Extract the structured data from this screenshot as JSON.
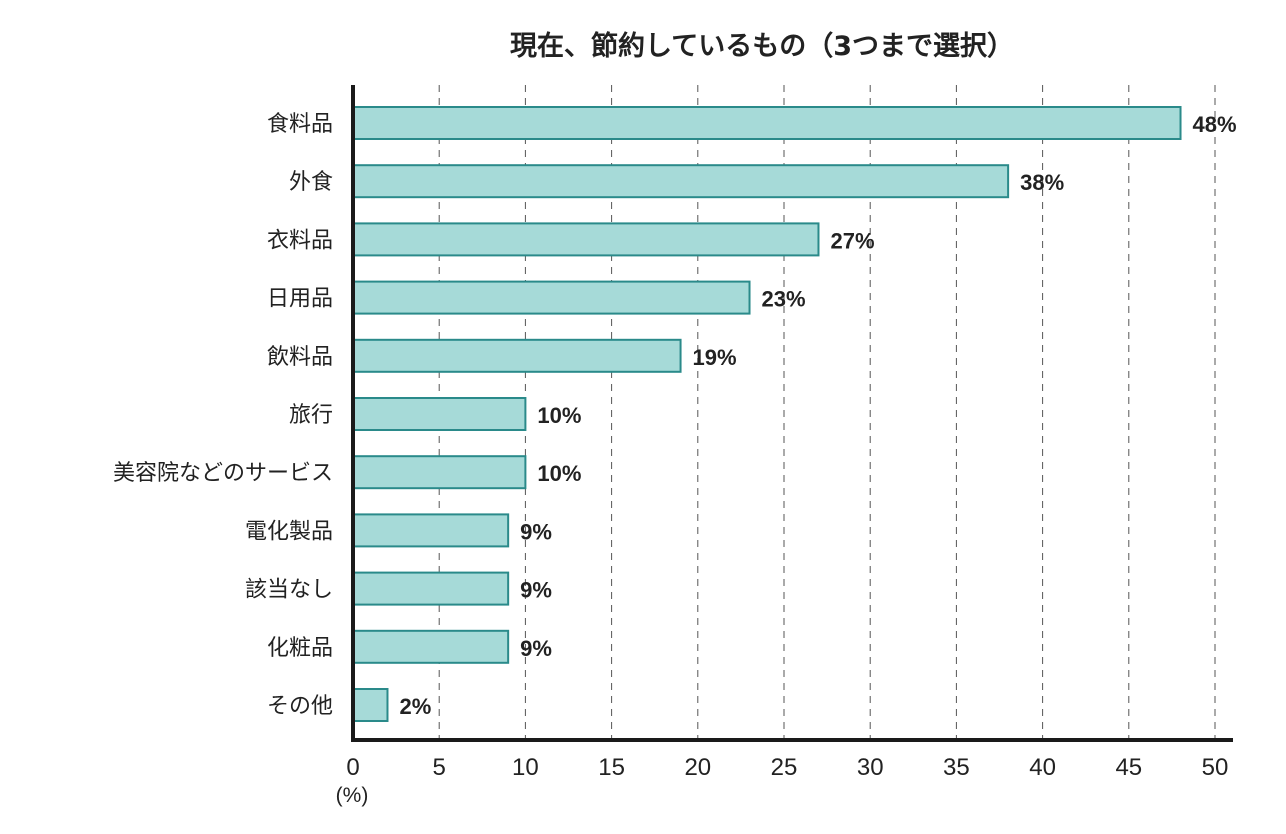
{
  "chart_data": {
    "type": "bar",
    "orientation": "horizontal",
    "title": "現在、節約しているもの（3つまで選択）",
    "categories": [
      "食料品",
      "外食",
      "衣料品",
      "日用品",
      "飲料品",
      "旅行",
      "美容院などのサービス",
      "電化製品",
      "該当なし",
      "化粧品",
      "その他"
    ],
    "values": [
      48,
      38,
      27,
      23,
      19,
      10,
      10,
      9,
      9,
      9,
      2
    ],
    "value_labels": [
      "48%",
      "38%",
      "27%",
      "23%",
      "19%",
      "10%",
      "10%",
      "9%",
      "9%",
      "9%",
      "2%"
    ],
    "xlabel": "(%)",
    "xlim": [
      0,
      50
    ],
    "xticks": [
      "0",
      "5",
      "10",
      "15",
      "20",
      "25",
      "30",
      "35",
      "40",
      "45",
      "50"
    ],
    "grid": "vertical dashed",
    "colors": {
      "bar_fill": "#a6dad8",
      "bar_stroke": "#2a8a8a",
      "axis": "#1a1a1a"
    }
  }
}
